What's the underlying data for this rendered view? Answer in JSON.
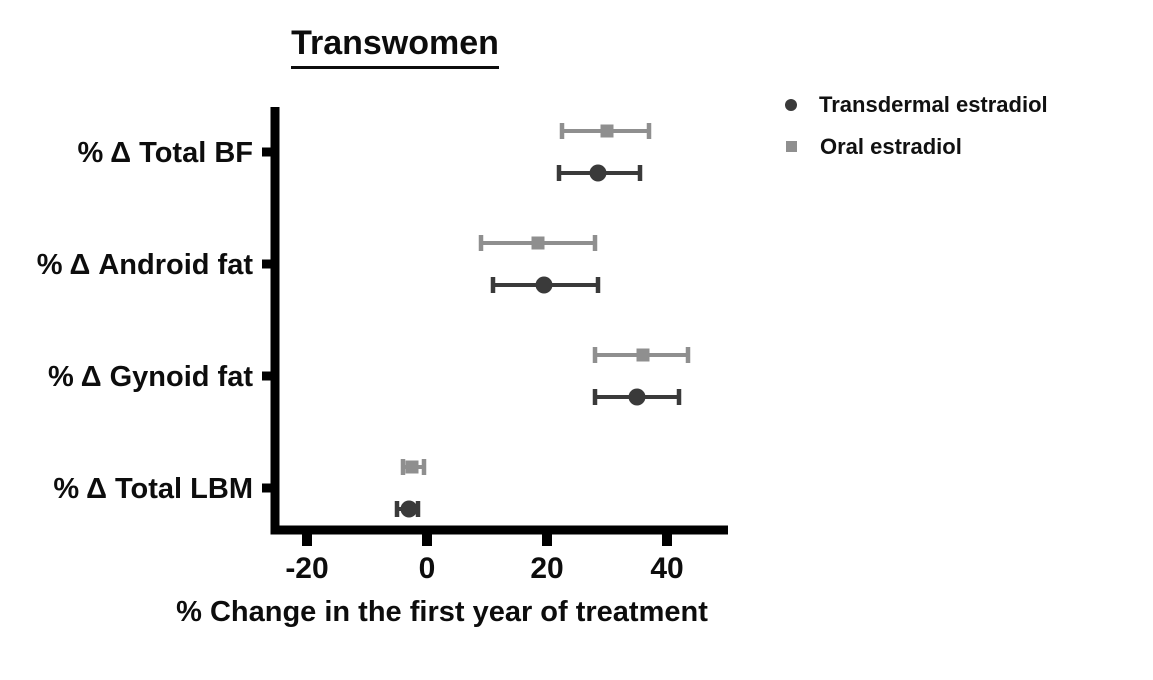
{
  "chart_data": {
    "type": "scatter",
    "subtype": "horizontal-dot-plot-with-error-bars",
    "title": "Transwomen",
    "xlabel": "% Change in the first year of treatment",
    "categories": [
      "% Δ Total BF",
      "% Δ Android fat",
      "% Δ Gynoid fat",
      "% Δ Total LBM"
    ],
    "xticks": [
      -20,
      0,
      20,
      40
    ],
    "xlim": [
      -26,
      50
    ],
    "grid": false,
    "legend_position": "top-right",
    "axis_color": "#000000",
    "text_color": "#0d0d0d",
    "series": [
      {
        "name": "Transdermal estradiol",
        "marker": "circle",
        "color": "#3a3a3a",
        "values": [
          28.5,
          19.5,
          35,
          -3
        ],
        "ci_low": [
          22,
          11,
          28,
          -5
        ],
        "ci_high": [
          35.5,
          28.5,
          42,
          -1.5
        ]
      },
      {
        "name": "Oral estradiol",
        "marker": "square",
        "color": "#8f8f8f",
        "values": [
          30,
          18.5,
          36,
          -2.5
        ],
        "ci_low": [
          22.5,
          9,
          28,
          -4
        ],
        "ci_high": [
          37,
          28,
          43.5,
          -0.5
        ]
      }
    ]
  }
}
